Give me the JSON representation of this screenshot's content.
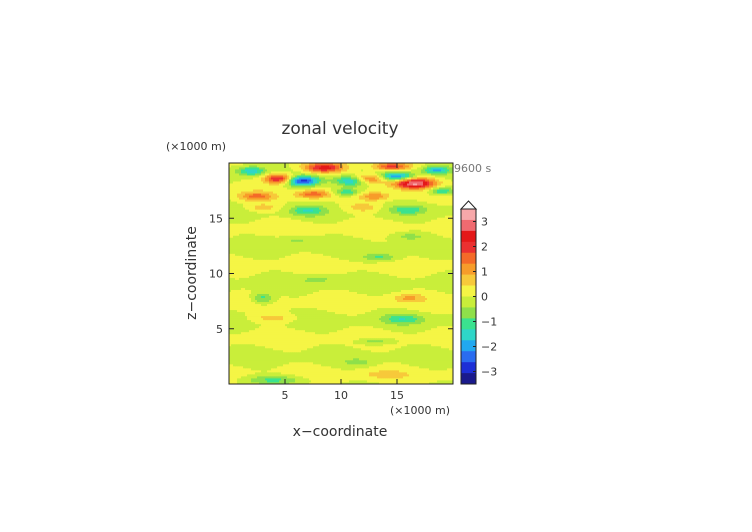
{
  "chart_data": {
    "type": "heatmap",
    "title": "zonal velocity",
    "xlabel": "x−coordinate",
    "ylabel": "z−coordinate",
    "x_unit_label": "(×1000 m)",
    "y_unit_label": "(×1000 m)",
    "time_label": "9600 s",
    "xlim": [
      0,
      20
    ],
    "ylim": [
      0,
      20
    ],
    "x_ticks": [
      5,
      10,
      15
    ],
    "y_ticks": [
      5,
      10,
      15
    ],
    "x_tick_labels": [
      "5",
      "10",
      "15"
    ],
    "y_tick_labels": [
      "5",
      "10",
      "15"
    ],
    "colorbar": {
      "ticks": [
        3,
        2,
        1,
        0,
        -1,
        -2,
        -3
      ],
      "tick_labels": [
        "3",
        "2",
        "1",
        "0",
        "−1",
        "−2",
        "−3"
      ],
      "range": [
        -3.5,
        3.5
      ],
      "extend": "max",
      "colors": [
        "#1a1a8c",
        "#1d2fd6",
        "#2a6cf0",
        "#22a8f0",
        "#2fd6c8",
        "#3be28f",
        "#8fe04a",
        "#c9ee3a",
        "#f5f545",
        "#f7c93a",
        "#f79c2a",
        "#f46a28",
        "#ea3030",
        "#e41818",
        "#f06a70",
        "#f7a8aa"
      ]
    },
    "field_features": [
      {
        "x": 4.5,
        "z": 18.6,
        "amp": 2.6,
        "sx": 1.3,
        "sz": 0.45
      },
      {
        "x": 8.5,
        "z": 19.6,
        "amp": 2.4,
        "sx": 1.8,
        "sz": 0.45
      },
      {
        "x": 16.5,
        "z": 18.2,
        "amp": 3.2,
        "sx": 1.8,
        "sz": 0.5
      },
      {
        "x": 12.5,
        "z": 18.6,
        "amp": 2.0,
        "sx": 1.5,
        "sz": 0.45
      },
      {
        "x": 14.5,
        "z": 19.7,
        "amp": 2.0,
        "sx": 1.6,
        "sz": 0.35
      },
      {
        "x": 7.5,
        "z": 17.2,
        "amp": 1.6,
        "sx": 1.5,
        "sz": 0.35
      },
      {
        "x": 2.5,
        "z": 17.0,
        "amp": 1.4,
        "sx": 1.5,
        "sz": 0.4
      },
      {
        "x": 13.0,
        "z": 17.0,
        "amp": 1.2,
        "sx": 1.3,
        "sz": 0.35
      },
      {
        "x": 2.0,
        "z": 19.3,
        "amp": -1.6,
        "sx": 1.2,
        "sz": 0.4
      },
      {
        "x": 6.5,
        "z": 18.4,
        "amp": -2.8,
        "sx": 1.5,
        "sz": 0.45
      },
      {
        "x": 11.0,
        "z": 18.4,
        "amp": -2.0,
        "sx": 1.5,
        "sz": 0.45
      },
      {
        "x": 15.0,
        "z": 18.8,
        "amp": -2.2,
        "sx": 1.6,
        "sz": 0.4
      },
      {
        "x": 18.5,
        "z": 19.4,
        "amp": -1.8,
        "sx": 1.2,
        "sz": 0.35
      },
      {
        "x": 19.0,
        "z": 17.5,
        "amp": -1.5,
        "sx": 1.2,
        "sz": 0.35
      },
      {
        "x": 10.5,
        "z": 17.4,
        "amp": -1.4,
        "sx": 1.2,
        "sz": 0.35
      },
      {
        "x": 7.0,
        "z": 15.7,
        "amp": -1.2,
        "sx": 1.5,
        "sz": 0.45
      },
      {
        "x": 16.0,
        "z": 15.8,
        "amp": -1.1,
        "sx": 1.5,
        "sz": 0.4
      },
      {
        "x": 12.0,
        "z": 16.0,
        "amp": 0.8,
        "sx": 1.5,
        "sz": 0.4
      },
      {
        "x": 3.0,
        "z": 16.0,
        "amp": 0.7,
        "sx": 1.4,
        "sz": 0.35
      },
      {
        "x": 13.5,
        "z": 11.5,
        "amp": -1.0,
        "sx": 1.5,
        "sz": 0.35
      },
      {
        "x": 3.0,
        "z": 7.8,
        "amp": -1.1,
        "sx": 0.9,
        "sz": 0.5
      },
      {
        "x": 15.5,
        "z": 5.9,
        "amp": -1.1,
        "sx": 1.8,
        "sz": 0.45
      },
      {
        "x": 16.0,
        "z": 7.8,
        "amp": 0.9,
        "sx": 1.4,
        "sz": 0.4
      },
      {
        "x": 4.0,
        "z": 6.0,
        "amp": 0.7,
        "sx": 1.8,
        "sz": 0.4
      },
      {
        "x": 13.0,
        "z": 3.9,
        "amp": -0.8,
        "sx": 1.5,
        "sz": 0.3
      },
      {
        "x": 4.0,
        "z": 0.4,
        "amp": -1.0,
        "sx": 2.5,
        "sz": 0.4
      },
      {
        "x": 14.0,
        "z": 0.9,
        "amp": 0.6,
        "sx": 2.0,
        "sz": 0.35
      },
      {
        "x": 6.0,
        "z": 13.0,
        "amp": -0.5,
        "sx": 2.0,
        "sz": 0.35
      },
      {
        "x": 16.0,
        "z": 13.4,
        "amp": -0.6,
        "sx": 1.6,
        "sz": 0.35
      },
      {
        "x": 8.0,
        "z": 9.5,
        "amp": -0.5,
        "sx": 2.0,
        "sz": 0.4
      },
      {
        "x": 11.5,
        "z": 2.0,
        "amp": -0.6,
        "sx": 1.2,
        "sz": 0.3
      }
    ]
  }
}
